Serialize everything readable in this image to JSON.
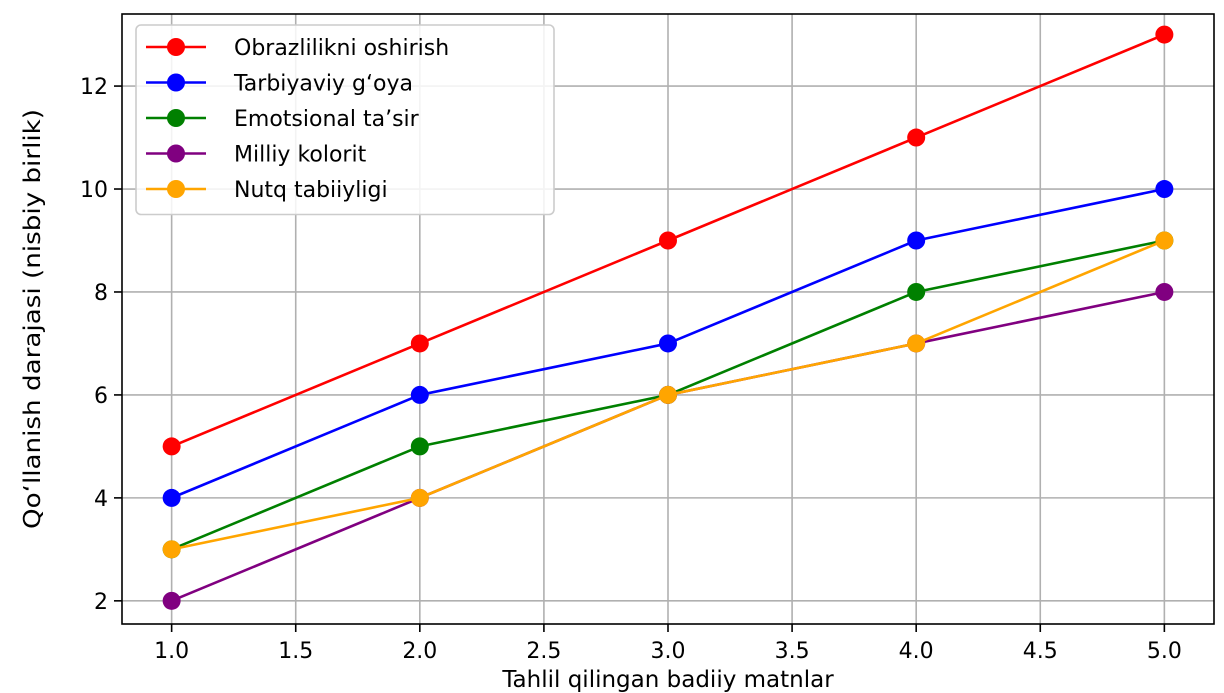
{
  "chart_data": {
    "type": "line",
    "title": "",
    "xlabel": "Tahlil qilingan badiiy matnlar",
    "ylabel": "Qo‘llanish darajasi (nisbiy birlik)",
    "x": [
      1,
      2,
      3,
      4,
      5
    ],
    "xlim": [
      0.8,
      5.2
    ],
    "ylim": [
      1.55,
      13.4
    ],
    "xticks": [
      1.0,
      1.5,
      2.0,
      2.5,
      3.0,
      3.5,
      4.0,
      4.5,
      5.0
    ],
    "xtick_labels": [
      "1.0",
      "1.5",
      "2.0",
      "2.5",
      "3.0",
      "3.5",
      "4.0",
      "4.5",
      "5.0"
    ],
    "yticks": [
      2,
      4,
      6,
      8,
      10,
      12
    ],
    "ytick_labels": [
      "2",
      "4",
      "6",
      "8",
      "10",
      "12"
    ],
    "grid": true,
    "legend_position": "upper-left",
    "series": [
      {
        "name": "Obrazlilikni oshirish",
        "color": "#ff0000",
        "values": [
          5,
          7,
          9,
          11,
          13
        ]
      },
      {
        "name": "Tarbiyaviy g‘oya",
        "color": "#0000ff",
        "values": [
          4,
          6,
          7,
          9,
          10
        ]
      },
      {
        "name": "Emotsional ta’sir",
        "color": "#008000",
        "values": [
          3,
          5,
          6,
          8,
          9
        ]
      },
      {
        "name": "Milliy kolorit",
        "color": "#800080",
        "values": [
          2,
          4,
          6,
          7,
          8
        ]
      },
      {
        "name": "Nutq tabiiyligi",
        "color": "#ffa500",
        "values": [
          3,
          4,
          6,
          7,
          9
        ]
      }
    ]
  }
}
